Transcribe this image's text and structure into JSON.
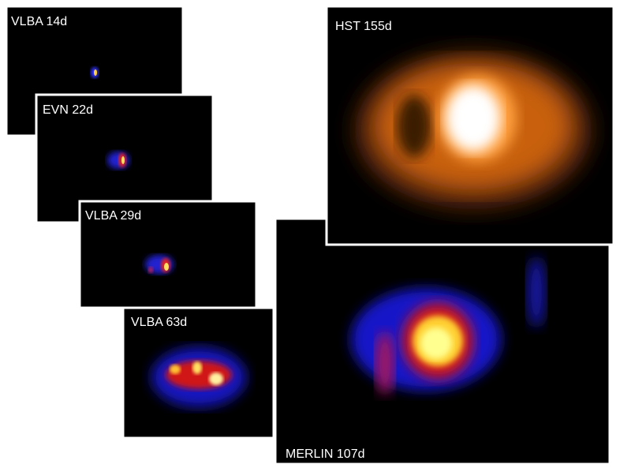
{
  "panels": [
    {
      "label": "VLBA 14d"
    },
    {
      "label": "EVN 22d"
    },
    {
      "label": "VLBA 29d"
    },
    {
      "label": "VLBA 63d"
    },
    {
      "label": "MERLIN 107d"
    },
    {
      "label": "HST 155d"
    }
  ]
}
